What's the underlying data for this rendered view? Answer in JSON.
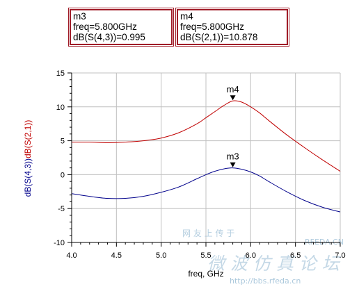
{
  "markers": [
    {
      "id": "m3",
      "lines": [
        "m3",
        "freq=5.800GHz",
        "dB(S(4,3))=0.995"
      ]
    },
    {
      "id": "m4",
      "lines": [
        "m4",
        "freq=5.800GHz",
        "dB(S(2,1))=10.878"
      ]
    }
  ],
  "watermark": {
    "cn_small": "网 友 上 传 于",
    "site_short": "RFEDA.CN",
    "cn_large": "微 波 仿 真 论 坛",
    "url": "http://bbs.rfeda.cn"
  },
  "colors": {
    "s21": "#c00000",
    "s43": "#00008b",
    "frame": "#a01c28",
    "grid": "#c0c0c0",
    "watermark": "#9dbfd6"
  },
  "chart_data": {
    "type": "line",
    "xlabel": "freq, GHz",
    "ylabel_parts": [
      {
        "text": "dB(S(4,3))",
        "color": "#00008b"
      },
      {
        "text": "dB(S(2,1))",
        "color": "#c00000"
      }
    ],
    "xlim": [
      4.0,
      7.0
    ],
    "ylim": [
      -10,
      15
    ],
    "x_ticks": [
      4.0,
      4.5,
      5.0,
      5.5,
      6.0,
      6.5,
      7.0
    ],
    "y_ticks": [
      -10,
      -5,
      0,
      5,
      10,
      15
    ],
    "grid": true,
    "series": [
      {
        "name": "dB(S(2,1))",
        "color": "#c00000",
        "x": [
          4.0,
          4.2,
          4.4,
          4.6,
          4.8,
          5.0,
          5.2,
          5.4,
          5.5,
          5.6,
          5.7,
          5.8,
          5.9,
          6.0,
          6.1,
          6.2,
          6.4,
          6.6,
          6.8,
          7.0
        ],
        "y": [
          4.8,
          4.8,
          4.7,
          4.8,
          5.0,
          5.4,
          6.2,
          7.5,
          8.4,
          9.3,
          10.2,
          10.878,
          10.7,
          10.0,
          9.1,
          8.0,
          5.9,
          4.0,
          2.2,
          0.5
        ]
      },
      {
        "name": "dB(S(4,3))",
        "color": "#00008b",
        "x": [
          4.0,
          4.2,
          4.4,
          4.6,
          4.8,
          5.0,
          5.2,
          5.4,
          5.5,
          5.6,
          5.7,
          5.8,
          5.9,
          6.0,
          6.1,
          6.2,
          6.4,
          6.6,
          6.8,
          7.0
        ],
        "y": [
          -2.8,
          -3.2,
          -3.5,
          -3.5,
          -3.2,
          -2.6,
          -1.8,
          -0.6,
          0.0,
          0.5,
          0.85,
          0.995,
          0.8,
          0.4,
          -0.2,
          -1.0,
          -2.5,
          -3.8,
          -4.8,
          -5.5
        ]
      }
    ],
    "markers": [
      {
        "label": "m4",
        "x": 5.8,
        "y": 10.878,
        "series": "dB(S(2,1))"
      },
      {
        "label": "m3",
        "x": 5.8,
        "y": 0.995,
        "series": "dB(S(4,3))"
      }
    ]
  }
}
